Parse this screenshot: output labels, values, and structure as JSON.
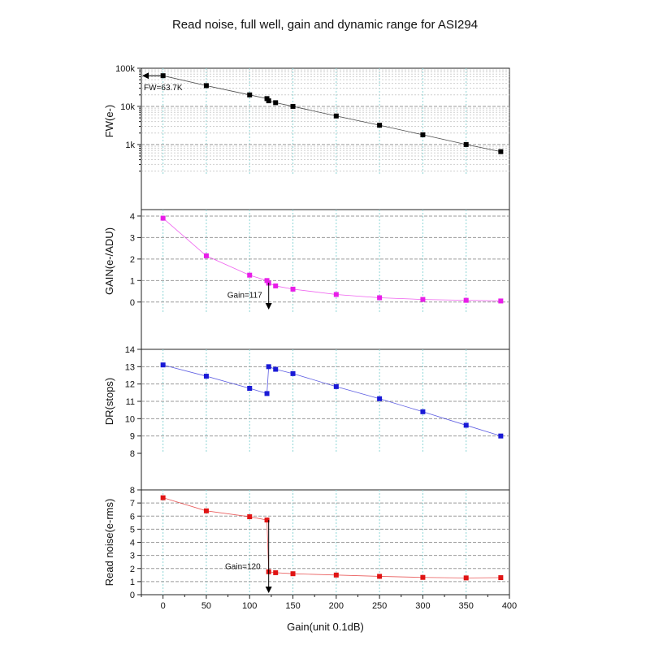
{
  "title": "Read noise, full well, gain and dynamic range for ASI294",
  "colors": {
    "frame": "#222222",
    "grid_major": "#9a9a9a",
    "grid_minor": "#cfcfcf",
    "vgrid": "#8fd6d6"
  },
  "chart_data": [
    {
      "type": "line",
      "id": "fw",
      "ylabel": "FW(e-)",
      "yscale": "log",
      "ylim": [
        170,
        100000
      ],
      "yticks": [
        1000,
        10000,
        100000
      ],
      "yticklabels": [
        "1k",
        "10k",
        "100k"
      ],
      "color": "#000000",
      "x": [
        0,
        50,
        100,
        120,
        122,
        130,
        150,
        200,
        250,
        300,
        350,
        390
      ],
      "values": [
        63700,
        35000,
        20000,
        16000,
        14000,
        12500,
        10000,
        5600,
        3200,
        1800,
        1000,
        650
      ],
      "annotation": "FW=63.7K"
    },
    {
      "type": "line",
      "id": "gain",
      "ylabel": "GAIN(e-/ADU)",
      "ylim": [
        -0.5,
        4.3
      ],
      "yticks": [
        0,
        1,
        2,
        3,
        4
      ],
      "yticklabels": [
        "0",
        "1",
        "2",
        "3",
        "4"
      ],
      "color": "#e81ee8",
      "x": [
        0,
        50,
        100,
        120,
        122,
        130,
        150,
        200,
        250,
        300,
        350,
        390
      ],
      "values": [
        3.9,
        2.15,
        1.25,
        1.0,
        0.88,
        0.75,
        0.6,
        0.35,
        0.2,
        0.12,
        0.08,
        0.05
      ],
      "annotation": "Gain=117"
    },
    {
      "type": "line",
      "id": "dr",
      "ylabel": "DR(stops)",
      "ylim": [
        8,
        14
      ],
      "yticks": [
        8,
        9,
        10,
        11,
        12,
        13,
        14
      ],
      "yticklabels": [
        "8",
        "9",
        "10",
        "11",
        "12",
        "13",
        "14"
      ],
      "color": "#1a1ad6",
      "x": [
        0,
        50,
        100,
        120,
        122,
        130,
        150,
        200,
        250,
        300,
        350,
        390
      ],
      "values": [
        13.1,
        12.45,
        11.75,
        11.45,
        13.0,
        12.85,
        12.6,
        11.85,
        11.15,
        10.4,
        9.62,
        9.0
      ]
    },
    {
      "type": "line",
      "id": "rn",
      "ylabel": "Read noise(e-rms)",
      "ylim": [
        0,
        8
      ],
      "yticks": [
        0,
        1,
        2,
        3,
        4,
        5,
        6,
        7,
        8
      ],
      "yticklabels": [
        "0",
        "1",
        "2",
        "3",
        "4",
        "5",
        "6",
        "7",
        "8"
      ],
      "color": "#e01414",
      "x": [
        0,
        50,
        100,
        120,
        122,
        130,
        150,
        200,
        250,
        300,
        350,
        390
      ],
      "values": [
        7.4,
        6.4,
        5.95,
        5.7,
        1.75,
        1.68,
        1.6,
        1.5,
        1.4,
        1.32,
        1.28,
        1.3
      ],
      "annotation": "Gain=120"
    }
  ],
  "xaxis": {
    "label": "Gain(unit 0.1dB)",
    "xlim": [
      -25,
      400
    ],
    "ticks": [
      0,
      50,
      100,
      150,
      200,
      250,
      300,
      350,
      400
    ],
    "ticklabels": [
      "0",
      "50",
      "100",
      "150",
      "200",
      "250",
      "300",
      "350",
      "400"
    ]
  }
}
